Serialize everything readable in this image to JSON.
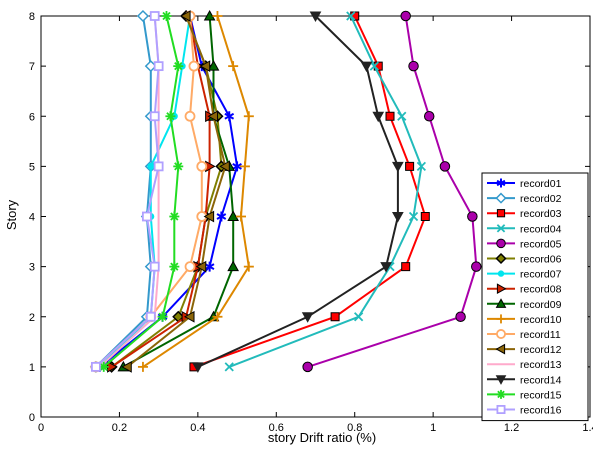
{
  "chart_data": {
    "type": "line",
    "xlabel": "story Drift ratio (%)",
    "ylabel": "Story",
    "xlim": [
      0,
      1.4
    ],
    "ylim": [
      0,
      8
    ],
    "xticks": [
      "0",
      "0.2",
      "0.4",
      "0.6",
      "0.8",
      "1",
      "1.2",
      "1.4"
    ],
    "yticks": [
      "0",
      "1",
      "2",
      "3",
      "4",
      "5",
      "6",
      "7",
      "8"
    ],
    "grid": false,
    "legend_position": "bottom-right",
    "y": [
      1,
      2,
      3,
      4,
      5,
      6,
      7,
      8
    ],
    "series": [
      {
        "name": "record01",
        "color": "#0000ff",
        "marker": "asterisk",
        "x": [
          0.15,
          0.31,
          0.43,
          0.46,
          0.5,
          0.48,
          0.41,
          0.38
        ]
      },
      {
        "name": "record02",
        "color": "#3399cc",
        "marker": "diamond",
        "x": [
          0.14,
          0.27,
          0.28,
          0.27,
          0.28,
          0.28,
          0.28,
          0.26
        ]
      },
      {
        "name": "record03",
        "color": "#ff0000",
        "marker": "square",
        "x": [
          0.39,
          0.75,
          0.93,
          0.98,
          0.94,
          0.89,
          0.86,
          0.8
        ]
      },
      {
        "name": "record04",
        "color": "#22bbbb",
        "marker": "x",
        "x": [
          0.48,
          0.81,
          0.89,
          0.95,
          0.97,
          0.92,
          0.85,
          0.79
        ]
      },
      {
        "name": "record05",
        "color": "#aa00aa",
        "marker": "circle",
        "x": [
          0.68,
          1.07,
          1.11,
          1.1,
          1.03,
          0.99,
          0.95,
          0.93
        ]
      },
      {
        "name": "record06",
        "color": "#7f7f00",
        "marker": "diamond",
        "x": [
          0.18,
          0.35,
          0.4,
          0.42,
          0.46,
          0.45,
          0.42,
          0.37
        ]
      },
      {
        "name": "record07",
        "color": "#00e5ee",
        "marker": "dot",
        "x": [
          0.15,
          0.28,
          0.29,
          0.28,
          0.28,
          0.34,
          0.36,
          0.38
        ]
      },
      {
        "name": "record08",
        "color": "#cc2200",
        "marker": "triangle-right",
        "x": [
          0.18,
          0.37,
          0.4,
          0.42,
          0.43,
          0.43,
          0.4,
          0.38
        ]
      },
      {
        "name": "record09",
        "color": "#006600",
        "marker": "triangle-up",
        "x": [
          0.21,
          0.44,
          0.49,
          0.49,
          0.48,
          0.44,
          0.44,
          0.43
        ]
      },
      {
        "name": "record10",
        "color": "#dd8800",
        "marker": "plus",
        "x": [
          0.26,
          0.45,
          0.53,
          0.51,
          0.52,
          0.53,
          0.49,
          0.45
        ]
      },
      {
        "name": "record11",
        "color": "#ffaa66",
        "marker": "circle-open",
        "x": [
          0.14,
          0.28,
          0.38,
          0.41,
          0.41,
          0.38,
          0.39,
          0.38
        ]
      },
      {
        "name": "record12",
        "color": "#8b6508",
        "marker": "triangle-left",
        "x": [
          0.22,
          0.38,
          0.41,
          0.43,
          0.47,
          0.44,
          0.42,
          0.37
        ]
      },
      {
        "name": "record13",
        "color": "#ffaacc",
        "marker": "none",
        "x": [
          0.15,
          0.29,
          0.3,
          0.3,
          0.3,
          0.3,
          0.3,
          0.29
        ]
      },
      {
        "name": "record14",
        "color": "#222222",
        "marker": "triangle-down",
        "x": [
          0.4,
          0.68,
          0.88,
          0.91,
          0.91,
          0.86,
          0.83,
          0.7
        ]
      },
      {
        "name": "record15",
        "color": "#22dd22",
        "marker": "star",
        "x": [
          0.16,
          0.31,
          0.34,
          0.34,
          0.35,
          0.33,
          0.35,
          0.32
        ]
      },
      {
        "name": "record16",
        "color": "#b0a0ff",
        "marker": "square-open",
        "x": [
          0.14,
          0.28,
          0.29,
          0.27,
          0.3,
          0.29,
          0.3,
          0.29
        ]
      }
    ]
  }
}
